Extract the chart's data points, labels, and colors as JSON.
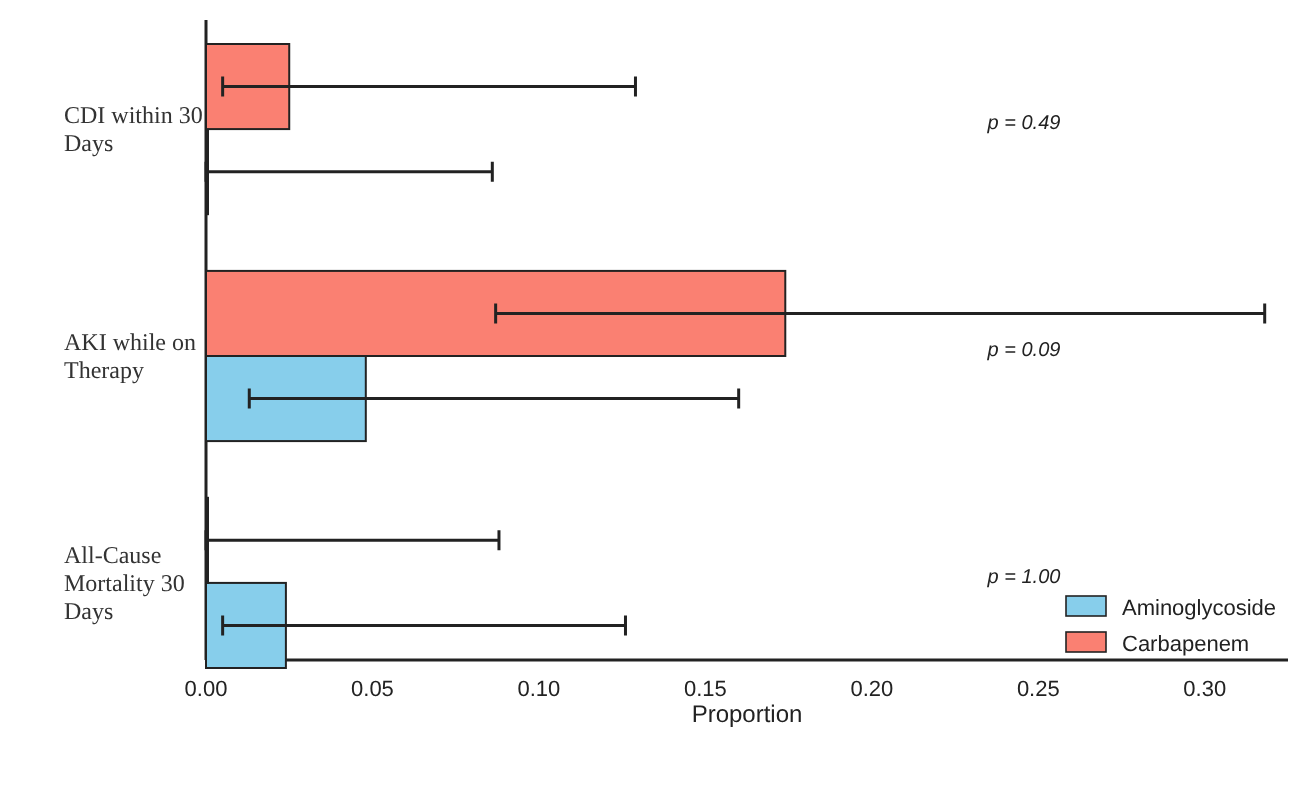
{
  "chart_data": {
    "type": "bar",
    "orientation": "horizontal",
    "xlabel": "Proportion",
    "categories": [
      "CDI within 30 Days",
      "AKI while on Therapy",
      "All-Cause Mortality 30 Days"
    ],
    "series": [
      {
        "name": "Aminoglycoside",
        "color": "#87ceeb",
        "values": [
          0,
          0.048,
          0.024
        ],
        "errors": [
          [
            0,
            0.086
          ],
          [
            0.013,
            0.16
          ],
          [
            0.005,
            0.126
          ]
        ]
      },
      {
        "name": "Carbapenem",
        "color": "#fa8072",
        "values": [
          0.025,
          0.174,
          0
        ],
        "errors": [
          [
            0.005,
            0.129
          ],
          [
            0.087,
            0.318
          ],
          [
            0,
            0.088
          ]
        ]
      }
    ],
    "xlim": [
      0,
      0.325
    ],
    "xticks": [
      {
        "value": 0,
        "label": "0.00"
      },
      {
        "value": 0.05,
        "label": "0.05"
      },
      {
        "value": 0.1,
        "label": "0.10"
      },
      {
        "value": 0.15,
        "label": "0.15"
      },
      {
        "value": 0.2,
        "label": "0.20"
      },
      {
        "value": 0.25,
        "label": "0.25"
      },
      {
        "value": 0.3,
        "label": "0.30"
      }
    ],
    "annotations": [
      "p = 0.49",
      "p = 0.09",
      "p = 1.00"
    ],
    "legend": "bottom right",
    "grid": false
  }
}
